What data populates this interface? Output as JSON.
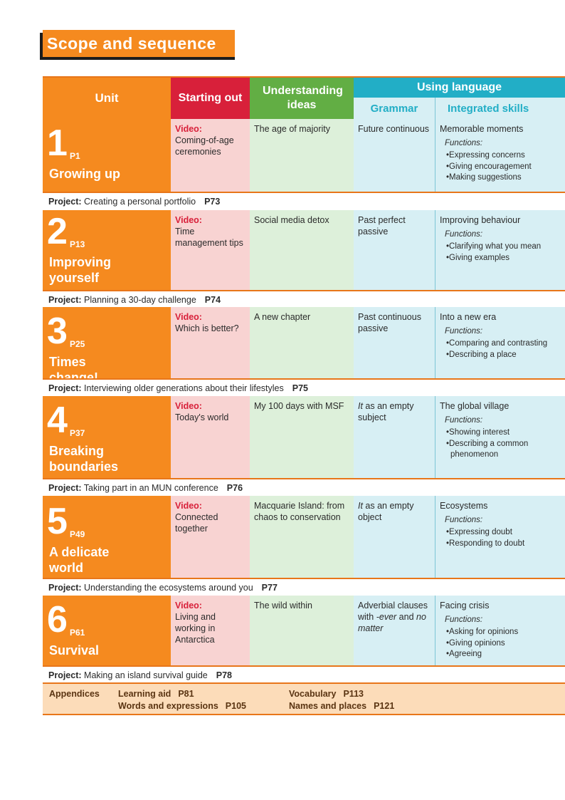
{
  "title": "Scope and sequence",
  "headers": {
    "unit": "Unit",
    "starting_out": "Starting out",
    "understanding_ideas": "Understanding ideas",
    "using_language": "Using language",
    "grammar": "Grammar",
    "integrated_skills": "Integrated skills"
  },
  "video_label": "Video:",
  "functions_label": "Functions:",
  "project_label": "Project:",
  "units": [
    {
      "number": "1",
      "page": "P1",
      "name": "Growing up",
      "video": "Coming-of-age ceremonies",
      "understanding": "The age of majority",
      "grammar": "Future continuous",
      "skills_title": "Memorable moments",
      "functions": [
        "•Expressing concerns",
        "•Giving encouragement",
        "•Making suggestions"
      ],
      "project": "Creating a personal portfolio",
      "project_page": "P73"
    },
    {
      "number": "2",
      "page": "P13",
      "name": "Improving yourself",
      "video": "Time management tips",
      "understanding": "Social media detox",
      "grammar": "Past perfect passive",
      "skills_title": "Improving behaviour",
      "functions": [
        "•Clarifying what you mean",
        "•Giving examples"
      ],
      "project": "Planning a 30-day challenge",
      "project_page": "P74"
    },
    {
      "number": "3",
      "page": "P25",
      "name": "Times change!",
      "video": "Which is better?",
      "understanding": "A new chapter",
      "grammar": "Past continuous passive",
      "skills_title": "Into a new era",
      "functions": [
        "•Comparing and contrasting",
        "•Describing a place"
      ],
      "project": "Interviewing older generations about their lifestyles",
      "project_page": "P75"
    },
    {
      "number": "4",
      "page": "P37",
      "name": "Breaking boundaries",
      "video": "Today's world",
      "understanding": "My 100 days with MSF",
      "grammar_italic": "It",
      "grammar": " as an empty subject",
      "skills_title": "The global village",
      "functions": [
        "•Showing interest",
        "•Describing a common phenomenon"
      ],
      "project": "Taking part in an MUN conference",
      "project_page": "P76"
    },
    {
      "number": "5",
      "page": "P49",
      "name": "A delicate world",
      "video": "Connected together",
      "understanding": "Macquarie Island: from chaos to conservation",
      "grammar_italic": "It",
      "grammar": " as an empty object",
      "skills_title": "Ecosystems",
      "functions": [
        "•Expressing doubt",
        "•Responding to doubt"
      ],
      "project": "Understanding the ecosystems around you",
      "project_page": "P77"
    },
    {
      "number": "6",
      "page": "P61",
      "name": "Survival",
      "video": "Living and working in Antarctica",
      "understanding": "The wild within",
      "grammar_parts": [
        "Adverbial clauses with ",
        "-ever",
        " and ",
        "no matter"
      ],
      "skills_title": "Facing crisis",
      "functions": [
        "•Asking for opinions",
        "•Giving opinions",
        "•Agreeing"
      ],
      "project": "Making an island survival guide",
      "project_page": "P78"
    }
  ],
  "appendices": {
    "label": "Appendices",
    "items": [
      {
        "name": "Learning aid",
        "page": "P81"
      },
      {
        "name": "Vocabulary",
        "page": "P113"
      },
      {
        "name": "Words and expressions",
        "page": "P105"
      },
      {
        "name": "Names and places",
        "page": "P121"
      }
    ]
  },
  "colors": {
    "unit": "#f58a1f",
    "starting_out": "#d8203a",
    "understanding": "#62ae44",
    "using_language": "#22aec6",
    "appendix_bg": "#fcdcb9"
  }
}
